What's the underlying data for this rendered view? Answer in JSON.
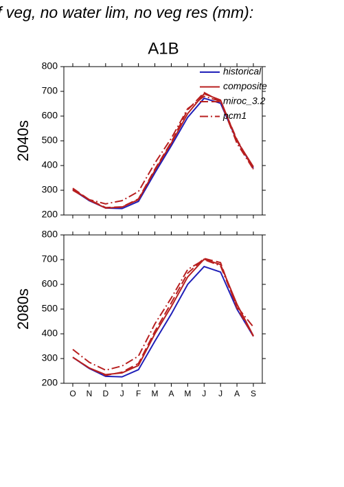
{
  "title": "f veg, no water lim, no veg res (mm):",
  "subtitle": "A1B",
  "chart_data": [
    {
      "type": "line",
      "ylabel": "2040s",
      "legend": "upper right",
      "categories": [
        null,
        null,
        null,
        null,
        null,
        null,
        null,
        null,
        null,
        null,
        null,
        null
      ],
      "ylim": [
        200,
        800
      ],
      "yticks": [
        200,
        300,
        400,
        500,
        600,
        700,
        800
      ],
      "series": [
        {
          "name": "historical",
          "color": "#1f1fb8",
          "dash": "solid",
          "values": [
            302,
            258,
            228,
            226,
            255,
            370,
            480,
            595,
            672,
            652,
            500,
            390
          ]
        },
        {
          "name": "composite",
          "color": "#b81f1f",
          "dash": "solid",
          "values": [
            305,
            260,
            228,
            232,
            262,
            380,
            490,
            610,
            690,
            665,
            500,
            395
          ]
        },
        {
          "name": "miroc_3.2",
          "color": "#b81f1f",
          "dash": "dashed",
          "values": [
            308,
            262,
            230,
            233,
            265,
            385,
            495,
            625,
            695,
            660,
            505,
            385
          ]
        },
        {
          "name": "pcm1",
          "color": "#b81f1f",
          "dash": "dashdot",
          "values": [
            300,
            262,
            245,
            258,
            295,
            410,
            510,
            630,
            680,
            660,
            490,
            385
          ]
        }
      ]
    },
    {
      "type": "line",
      "ylabel": "2080s",
      "categories": [
        "O",
        "N",
        "D",
        "J",
        "F",
        "M",
        "A",
        "M",
        "J",
        "J",
        "A",
        "S"
      ],
      "ylim": [
        200,
        800
      ],
      "yticks": [
        200,
        300,
        400,
        500,
        600,
        700,
        800
      ],
      "series": [
        {
          "color": "#1f1fb8",
          "dash": "solid",
          "values": [
            305,
            260,
            228,
            226,
            255,
            370,
            480,
            600,
            672,
            650,
            500,
            390
          ]
        },
        {
          "color": "#b81f1f",
          "dash": "solid",
          "values": [
            305,
            262,
            235,
            242,
            272,
            400,
            510,
            630,
            702,
            680,
            520,
            392
          ]
        },
        {
          "color": "#b81f1f",
          "dash": "dashed",
          "values": [
            305,
            262,
            232,
            245,
            280,
            410,
            525,
            645,
            705,
            688,
            505,
            390
          ]
        },
        {
          "color": "#b81f1f",
          "dash": "dashdot",
          "values": [
            337,
            285,
            253,
            270,
            310,
            440,
            545,
            660,
            700,
            675,
            510,
            428
          ]
        }
      ]
    }
  ]
}
